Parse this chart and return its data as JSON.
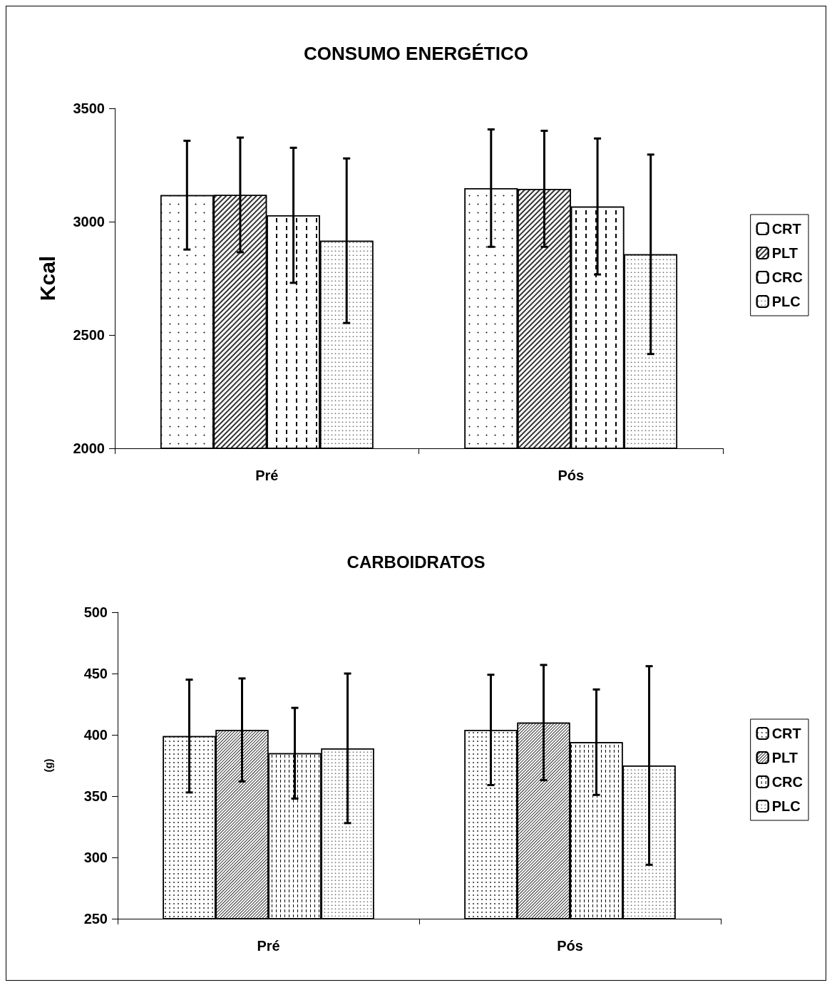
{
  "chart_data": [
    {
      "type": "bar",
      "title": "CONSUMO ENERGÉTICO",
      "ylabel": "Kcal",
      "categories": [
        "Pré",
        "Pós"
      ],
      "series": [
        {
          "name": "CRT",
          "color": "#ffffff",
          "values": [
            3117,
            3148
          ],
          "errors": [
            240,
            259
          ]
        },
        {
          "name": "PLT",
          "color": "#ffffff",
          "values": [
            3118,
            3145
          ],
          "errors": [
            253,
            256
          ]
        },
        {
          "name": "CRC",
          "color": "#ffffff",
          "values": [
            3028,
            3067
          ],
          "errors": [
            298,
            300
          ]
        },
        {
          "name": "PLC",
          "color": "#ffffff",
          "values": [
            2916,
            2856
          ],
          "errors": [
            363,
            440
          ]
        }
      ],
      "ylim": [
        2000,
        3500
      ],
      "yticks": [
        2000,
        2500,
        3000,
        3500
      ],
      "grid": false,
      "legend": "right"
    },
    {
      "type": "bar",
      "title": "CARBOIDRATOS",
      "ylabel": "(g)",
      "categories": [
        "Pré",
        "Pós"
      ],
      "series": [
        {
          "name": "CRT",
          "color": "#ffffff",
          "values": [
            399,
            404
          ],
          "errors": [
            46,
            45
          ]
        },
        {
          "name": "PLT",
          "color": "#ffffff",
          "values": [
            404,
            410
          ],
          "errors": [
            42,
            47
          ]
        },
        {
          "name": "CRC",
          "color": "#ffffff",
          "values": [
            385,
            394
          ],
          "errors": [
            37,
            43
          ]
        },
        {
          "name": "PLC",
          "color": "#ffffff",
          "values": [
            389,
            375
          ],
          "errors": [
            61,
            81
          ]
        }
      ],
      "ylim": [
        250,
        500
      ],
      "yticks": [
        250,
        300,
        350,
        400,
        450,
        500
      ],
      "grid": false,
      "legend": "right"
    }
  ]
}
